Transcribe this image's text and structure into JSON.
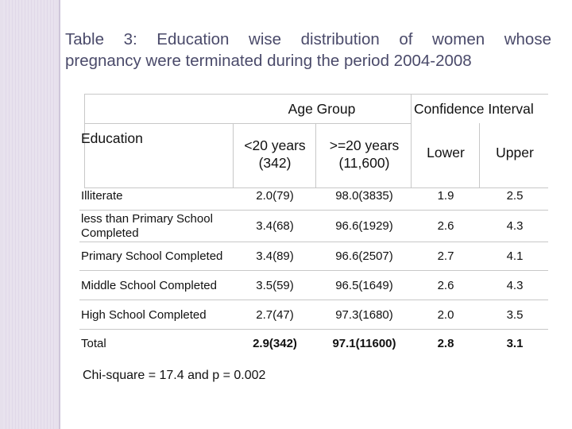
{
  "slide": {
    "title_line1": "Table 3: Education wise distribution of women whose",
    "title_line2": "pregnancy were terminated during the period 2004-2008"
  },
  "table": {
    "header_education": "Education",
    "header_age_group": "Age Group",
    "header_ci": "Confidence Interval",
    "col_under20_l1": "<20 years",
    "col_under20_l2": "(342)",
    "col_over20_l1": ">=20 years",
    "col_over20_l2": "(11,600)",
    "col_lower": "Lower",
    "col_upper": "Upper",
    "rows": [
      {
        "label": "Illiterate",
        "label2": "",
        "under20": "2.0(79)",
        "over20": "98.0(3835)",
        "lower": "1.9",
        "upper": "2.5"
      },
      {
        "label": "less than Primary School",
        "label2": "Completed",
        "under20": "3.4(68)",
        "over20": "96.6(1929)",
        "lower": "2.6",
        "upper": "4.3"
      },
      {
        "label": "Primary School Completed",
        "label2": "",
        "under20": "3.4(89)",
        "over20": "96.6(2507)",
        "lower": "2.7",
        "upper": "4.1"
      },
      {
        "label": "Middle School Completed",
        "label2": "",
        "under20": "3.5(59)",
        "over20": "96.5(1649)",
        "lower": "2.6",
        "upper": "4.3"
      },
      {
        "label": "High School Completed",
        "label2": "",
        "under20": "2.7(47)",
        "over20": "97.3(1680)",
        "lower": "2.0",
        "upper": "3.5"
      },
      {
        "label": "Total",
        "label2": "",
        "under20": "2.9(342)",
        "over20": "97.1(11600)",
        "lower": "2.8",
        "upper": "3.1"
      }
    ]
  },
  "footer": "Chi-square = 17.4 and p = 0.002"
}
